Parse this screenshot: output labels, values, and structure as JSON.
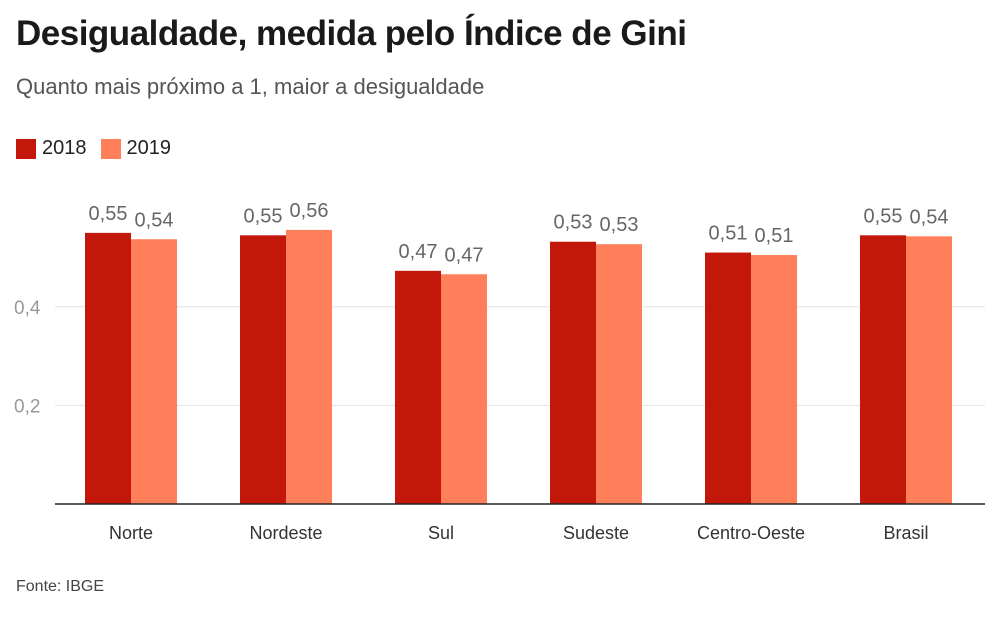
{
  "chart_data": {
    "type": "bar",
    "title": "Desigualdade, medida pelo Índice de Gini",
    "subtitle": "Quanto mais próximo a 1, maior a desigualdade",
    "categories": [
      "Norte",
      "Nordeste",
      "Sul",
      "Sudeste",
      "Centro-Oeste",
      "Brasil"
    ],
    "series": [
      {
        "name": "2018",
        "color": "#c4170c",
        "values": [
          0.55,
          0.545,
          0.473,
          0.532,
          0.51,
          0.545
        ],
        "labels": [
          "0,55",
          "0,55",
          "0,47",
          "0,53",
          "0,51",
          "0,55"
        ]
      },
      {
        "name": "2019",
        "color": "#ff7f5a",
        "values": [
          0.537,
          0.556,
          0.466,
          0.527,
          0.505,
          0.543
        ],
        "labels": [
          "0,54",
          "0,56",
          "0,47",
          "0,53",
          "0,51",
          "0,54"
        ]
      }
    ],
    "yticks": [
      {
        "value": 0.2,
        "label": "0,2"
      },
      {
        "value": 0.4,
        "label": "0,4"
      }
    ],
    "ylim": [
      0,
      0.6
    ],
    "grid": true,
    "legend_position": "top-left",
    "source": "Fonte: IBGE"
  }
}
